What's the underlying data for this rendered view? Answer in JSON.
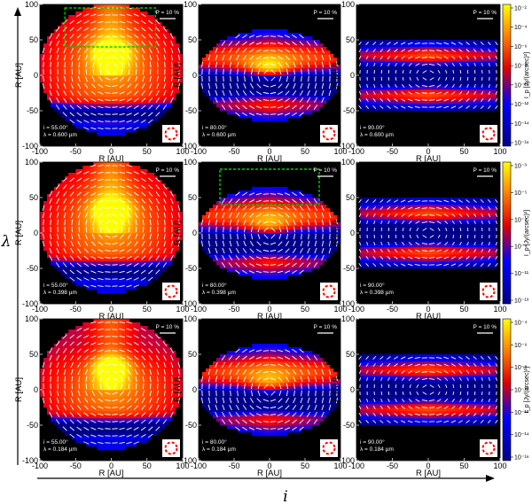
{
  "figure": {
    "outer_x_label": "i",
    "outer_y_label": "λ",
    "panel_xlabel": "R [AU]",
    "panel_ylabel": "R [AU]",
    "xticks": [
      "-100",
      "-50",
      "0",
      "50",
      "100"
    ],
    "yticks": [
      "100",
      "50",
      "0",
      "-50",
      "-100"
    ],
    "p_label": "P = 10 %",
    "colorbar_label": "I_p [Jy/(arcsec)²]"
  },
  "colorbars": [
    {
      "ticks": [
        "10⁻²",
        "10⁻⁴",
        "10⁻⁶",
        "10⁻⁸",
        "10⁻¹⁰",
        "10⁻¹²",
        "10⁻¹⁴",
        "10⁻¹⁶"
      ]
    },
    {
      "ticks": [
        "10⁻³",
        "10⁻⁵",
        "10⁻⁷",
        "10⁻⁹",
        "10⁻¹¹",
        "10⁻¹³"
      ]
    },
    {
      "ticks": [
        "10⁻⁴",
        "10⁻⁶",
        "10⁻⁸",
        "10⁻¹⁰",
        "10⁻¹²",
        "10⁻¹⁴",
        "10⁻¹⁶"
      ]
    }
  ],
  "chart_data": {
    "type": "heatmap",
    "rows": [
      {
        "wavelength": "0.600 µm",
        "panels": [
          {
            "i_label": "i = 55.00°",
            "lambda_label": "λ = 0.600 µm",
            "p_label": "P = 10 %",
            "inclination_deg": 55,
            "box": [
              -65,
              62,
              40,
              95
            ]
          },
          {
            "i_label": "i = 80.00°",
            "lambda_label": "λ = 0.600 µm",
            "p_label": "P = 10 %",
            "inclination_deg": 80
          },
          {
            "i_label": "i = 90.00°",
            "lambda_label": "λ = 0.600 µm",
            "p_label": "P = 10 %",
            "inclination_deg": 90
          }
        ]
      },
      {
        "wavelength": "0.398 µm",
        "panels": [
          {
            "i_label": "i = 55.00°",
            "lambda_label": "λ = 0.398 µm",
            "p_label": "P = 10 %",
            "inclination_deg": 55
          },
          {
            "i_label": "i = 80.00°",
            "lambda_label": "λ = 0.398 µm",
            "p_label": "P = 10 %",
            "inclination_deg": 80,
            "box": [
              -70,
              70,
              40,
              90
            ]
          },
          {
            "i_label": "i = 90.00°",
            "lambda_label": "λ = 0.398 µm",
            "p_label": "P = 10 %",
            "inclination_deg": 90
          }
        ]
      },
      {
        "wavelength": "0.184 µm",
        "panels": [
          {
            "i_label": "i = 55.00°",
            "lambda_label": "λ = 0.184 µm",
            "p_label": "P = 10 %",
            "inclination_deg": 55
          },
          {
            "i_label": "i = 80.00°",
            "lambda_label": "λ = 0.184 µm",
            "p_label": "P = 10 %",
            "inclination_deg": 80
          },
          {
            "i_label": "i = 90.00°",
            "lambda_label": "λ = 0.184 µm",
            "p_label": "P = 10 %",
            "inclination_deg": 90
          }
        ]
      }
    ],
    "xlim": [
      -100,
      100
    ],
    "ylim": [
      -100,
      100
    ],
    "colormap": [
      "#00008b",
      "#0000ff",
      "#ff0000",
      "#ff8c00",
      "#ffff00"
    ],
    "background": "#000000",
    "vector_color": "#ffffff",
    "box_color": "#00cc00",
    "beam_color": "#ff0000"
  }
}
